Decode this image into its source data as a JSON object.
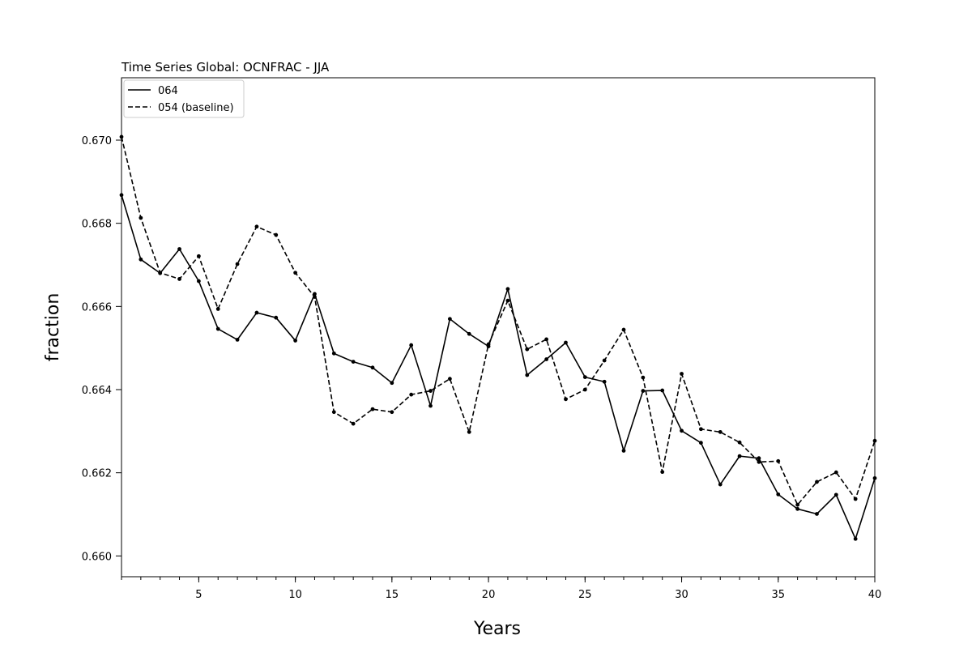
{
  "chart_data": {
    "type": "line",
    "title": "Time Series Global: OCNFRAC - JJA",
    "xlabel": "Years",
    "ylabel": "fraction",
    "xlim": [
      1,
      40
    ],
    "ylim": [
      0.6595,
      0.6715
    ],
    "x_ticks": [
      5,
      10,
      15,
      20,
      25,
      30,
      35,
      40
    ],
    "x_minor_ticks": [
      1,
      2,
      3,
      4,
      5,
      6,
      7,
      8,
      9,
      10,
      11,
      12,
      13,
      14,
      15,
      16,
      17,
      18,
      19,
      20,
      21,
      22,
      23,
      24,
      25,
      26,
      27,
      28,
      29,
      30,
      31,
      32,
      33,
      34,
      35,
      36,
      37,
      38,
      39,
      40
    ],
    "x_tick_labels": [
      "5",
      "10",
      "15",
      "20",
      "25",
      "30",
      "35",
      "40"
    ],
    "y_ticks": [
      0.66,
      0.662,
      0.664,
      0.666,
      0.668,
      0.67
    ],
    "y_tick_labels": [
      "0.660",
      "0.662",
      "0.664",
      "0.666",
      "0.668",
      "0.670"
    ],
    "grid": false,
    "legend_position": "top-left",
    "x": [
      1,
      2,
      3,
      4,
      5,
      6,
      7,
      8,
      9,
      10,
      11,
      12,
      13,
      14,
      15,
      16,
      17,
      18,
      19,
      20,
      21,
      22,
      23,
      24,
      25,
      26,
      27,
      28,
      29,
      30,
      31,
      32,
      33,
      34,
      35,
      36,
      37,
      38,
      39,
      40
    ],
    "series": [
      {
        "name": "064",
        "style": "solid",
        "color": "#000000",
        "values": [
          0.66868,
          0.66713,
          0.6668,
          0.66738,
          0.66661,
          0.66546,
          0.6652,
          0.66585,
          0.66573,
          0.66518,
          0.6663,
          0.66487,
          0.66467,
          0.66453,
          0.66416,
          0.66507,
          0.66361,
          0.6657,
          0.66534,
          0.66504,
          0.66642,
          0.66435,
          0.66473,
          0.66513,
          0.6643,
          0.66419,
          0.66253,
          0.66397,
          0.66398,
          0.66301,
          0.66272,
          0.66172,
          0.6624,
          0.66235,
          0.66148,
          0.66113,
          0.66101,
          0.66147,
          0.66041,
          0.66187
        ]
      },
      {
        "name": "054 (baseline)",
        "style": "dashed",
        "color": "#000000",
        "values": [
          0.67008,
          0.66813,
          0.66681,
          0.66666,
          0.66721,
          0.66594,
          0.66702,
          0.66792,
          0.66772,
          0.66681,
          0.66623,
          0.66346,
          0.66318,
          0.66353,
          0.66346,
          0.66388,
          0.66397,
          0.66426,
          0.66298,
          0.66509,
          0.66614,
          0.66497,
          0.66521,
          0.66377,
          0.664,
          0.6647,
          0.66544,
          0.66429,
          0.66202,
          0.66438,
          0.66305,
          0.66298,
          0.66273,
          0.66226,
          0.66228,
          0.66123,
          0.66178,
          0.66201,
          0.66137,
          0.66277
        ]
      }
    ]
  }
}
